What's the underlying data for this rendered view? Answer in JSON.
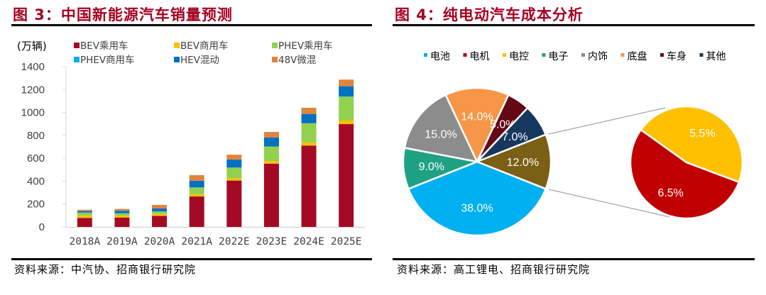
{
  "left_panel": {
    "title": "图 3：中国新能源汽车销量预测",
    "source": "资料来源：中汽协、招商银行研究院"
  },
  "right_panel": {
    "title": "图 4：纯电动汽车成本分析",
    "source": "资料来源：高工锂电、招商银行研究院"
  },
  "chart_data": [
    {
      "type": "bar",
      "stacked": true,
      "title": "中国新能源汽车销量预测",
      "ylabel": "(万辆)",
      "xlabel": "",
      "ylim": [
        0,
        1400
      ],
      "yticks": [
        0,
        200,
        400,
        600,
        800,
        1000,
        1200,
        1400
      ],
      "grid": false,
      "legend_position": "top",
      "categories": [
        "2018A",
        "2019A",
        "2020A",
        "2021A",
        "2022E",
        "2023E",
        "2024E",
        "2025E"
      ],
      "series": [
        {
          "name": "BEV乘用车",
          "color": "#A50A24",
          "values": [
            79,
            82,
            97,
            266,
            405,
            553,
            711,
            898
          ]
        },
        {
          "name": "BEV商用车",
          "color": "#FFC000",
          "values": [
            21,
            17,
            16,
            20,
            20,
            23,
            28,
            31
          ]
        },
        {
          "name": "PHEV乘用车",
          "color": "#92D050",
          "values": [
            23,
            19,
            21,
            58,
            93,
            126,
            166,
            209
          ]
        },
        {
          "name": "PHEV商用车",
          "color": "#00B0F0",
          "values": [
            3,
            3,
            2,
            1,
            1,
            1,
            1,
            2
          ]
        },
        {
          "name": "HEV混动",
          "color": "#0070C0",
          "values": [
            12,
            20,
            25,
            59,
            69,
            79,
            81,
            89
          ]
        },
        {
          "name": "48V微混",
          "color": "#E0843C",
          "values": [
            12,
            16,
            31,
            48,
            43,
            48,
            54,
            58
          ]
        }
      ]
    },
    {
      "type": "pie",
      "subtype": "pie-of-pie",
      "title": "纯电动汽车成本分析",
      "legend_position": "top",
      "legend": [
        {
          "name": "电池",
          "color": "#00B0F0"
        },
        {
          "name": "电机",
          "color": "#C00000"
        },
        {
          "name": "电控",
          "color": "#FFC000"
        },
        {
          "name": "电子",
          "color": "#1FA183"
        },
        {
          "name": "内饰",
          "color": "#8C8C8C"
        },
        {
          "name": "底盘",
          "color": "#F79646"
        },
        {
          "name": "车身",
          "color": "#640816"
        },
        {
          "name": "其他",
          "color": "#17375E"
        }
      ],
      "main_pie": [
        {
          "name": "电池",
          "value": 38.0,
          "label": "38.0%",
          "color": "#00B0F0"
        },
        {
          "name": "电子",
          "value": 9.0,
          "label": "9.0%",
          "color": "#1FA183"
        },
        {
          "name": "内饰",
          "value": 15.0,
          "label": "15.0%",
          "color": "#8C8C8C"
        },
        {
          "name": "底盘",
          "value": 14.0,
          "label": "14.0%",
          "color": "#F79646"
        },
        {
          "name": "车身",
          "value": 5.0,
          "label": "5.0%",
          "color": "#640816"
        },
        {
          "name": "其他",
          "value": 7.0,
          "label": "7.0%",
          "color": "#17375E"
        },
        {
          "name": "电机+电控",
          "value": 12.0,
          "label": "12.0%",
          "color": "#7A5F14"
        }
      ],
      "secondary_pie": [
        {
          "name": "电机",
          "value": 6.5,
          "label": "6.5%",
          "color": "#C00000"
        },
        {
          "name": "电控",
          "value": 5.5,
          "label": "5.5%",
          "color": "#FFC000"
        }
      ]
    }
  ]
}
